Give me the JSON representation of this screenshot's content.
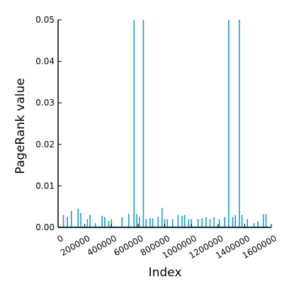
{
  "chart_data": {
    "type": "line",
    "title": "",
    "xlabel": "Index",
    "ylabel": "PageRank value",
    "xlim": [
      0,
      1600000
    ],
    "ylim": [
      0,
      0.05
    ],
    "x_ticks": [
      0,
      200000,
      400000,
      600000,
      800000,
      1000000,
      1200000,
      1400000,
      1600000
    ],
    "x_tick_labels": [
      "0",
      "200000",
      "400000",
      "600000",
      "800000",
      "1000000",
      "1200000",
      "1400000",
      "1600000"
    ],
    "y_ticks": [
      0,
      0.01,
      0.02,
      0.03,
      0.04,
      0.05
    ],
    "y_tick_labels": [
      "0.00",
      "0.01",
      "0.02",
      "0.03",
      "0.04",
      "0.05"
    ],
    "grid": false,
    "legend": "none",
    "series_color": "#1a9bd7",
    "spikes": {
      "x": [
        40000,
        70000,
        100000,
        150000,
        170000,
        220000,
        240000,
        280000,
        330000,
        350000,
        380000,
        400000,
        480000,
        530000,
        570000,
        590000,
        610000,
        640000,
        660000,
        690000,
        710000,
        750000,
        780000,
        800000,
        820000,
        860000,
        900000,
        930000,
        950000,
        980000,
        1000000,
        1050000,
        1080000,
        1110000,
        1140000,
        1170000,
        1210000,
        1250000,
        1280000,
        1310000,
        1330000,
        1360000,
        1380000,
        1420000,
        1470000,
        1500000,
        1540000,
        1560000
      ],
      "y": [
        0.003,
        0.0025,
        0.004,
        0.0045,
        0.0035,
        0.002,
        0.003,
        0.001,
        0.0028,
        0.0025,
        0.0015,
        0.002,
        0.0025,
        0.0033,
        0.05,
        0.0032,
        0.0025,
        0.05,
        0.002,
        0.0022,
        0.0022,
        0.0025,
        0.0047,
        0.002,
        0.002,
        0.002,
        0.003,
        0.0028,
        0.003,
        0.002,
        0.002,
        0.002,
        0.0022,
        0.0025,
        0.002,
        0.0025,
        0.002,
        0.0025,
        0.05,
        0.0025,
        0.003,
        0.05,
        0.003,
        0.002,
        0.001,
        0.0015,
        0.0032,
        0.0032
      ]
    }
  }
}
